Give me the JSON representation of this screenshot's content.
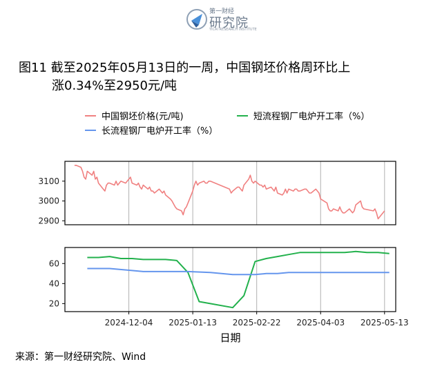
{
  "logo": {
    "top_text": "第一财经",
    "main_text": "研究院",
    "sub_text": "YICAI RESEARCH INSTITUTE"
  },
  "title": {
    "line1": "图11  截至2025年05月13日的一周，中国钢坯价格周环比上",
    "line2": "涨0.34%至2950元/吨"
  },
  "source": "来源：第一财经研究院、Wind",
  "colors": {
    "price": "#f08080",
    "short": "#22b14c",
    "long": "#6495ed"
  },
  "chart_data": [
    {
      "type": "line",
      "panel": "top",
      "series": [
        {
          "name": "中国钢坯价格(元/吨)",
          "x": [
            "2024-10-31",
            "2024-11-01",
            "2024-11-04",
            "2024-11-05",
            "2024-11-06",
            "2024-11-07",
            "2024-11-08",
            "2024-11-11",
            "2024-11-12",
            "2024-11-13",
            "2024-11-14",
            "2024-11-15",
            "2024-11-18",
            "2024-11-19",
            "2024-11-20",
            "2024-11-21",
            "2024-11-22",
            "2024-11-25",
            "2024-11-26",
            "2024-11-27",
            "2024-11-28",
            "2024-11-29",
            "2024-12-02",
            "2024-12-03",
            "2024-12-04",
            "2024-12-05",
            "2024-12-06",
            "2024-12-09",
            "2024-12-10",
            "2024-12-11",
            "2024-12-12",
            "2024-12-13",
            "2024-12-16",
            "2024-12-17",
            "2024-12-18",
            "2024-12-19",
            "2024-12-20",
            "2024-12-23",
            "2024-12-24",
            "2024-12-25",
            "2024-12-26",
            "2024-12-27",
            "2024-12-30",
            "2024-12-31",
            "2025-01-02",
            "2025-01-03",
            "2025-01-06",
            "2025-01-07",
            "2025-01-08",
            "2025-01-09",
            "2025-01-10",
            "2025-01-13",
            "2025-01-14",
            "2025-01-15",
            "2025-01-16",
            "2025-01-17",
            "2025-01-20",
            "2025-01-21",
            "2025-01-22",
            "2025-01-23",
            "2025-01-24",
            "2025-01-27",
            "2025-02-05",
            "2025-02-06",
            "2025-02-07",
            "2025-02-10",
            "2025-02-11",
            "2025-02-12",
            "2025-02-13",
            "2025-02-14",
            "2025-02-17",
            "2025-02-18",
            "2025-02-19",
            "2025-02-20",
            "2025-02-21",
            "2025-02-24",
            "2025-02-25",
            "2025-02-26",
            "2025-02-27",
            "2025-02-28",
            "2025-03-03",
            "2025-03-04",
            "2025-03-05",
            "2025-03-06",
            "2025-03-07",
            "2025-03-10",
            "2025-03-11",
            "2025-03-12",
            "2025-03-13",
            "2025-03-14",
            "2025-03-17",
            "2025-03-18",
            "2025-03-19",
            "2025-03-20",
            "2025-03-21",
            "2025-03-24",
            "2025-03-25",
            "2025-03-26",
            "2025-03-27",
            "2025-03-28",
            "2025-03-31",
            "2025-04-01",
            "2025-04-02",
            "2025-04-03",
            "2025-04-07",
            "2025-04-08",
            "2025-04-09",
            "2025-04-10",
            "2025-04-11",
            "2025-04-14",
            "2025-04-15",
            "2025-04-16",
            "2025-04-17",
            "2025-04-18",
            "2025-04-21",
            "2025-04-22",
            "2025-04-23",
            "2025-04-24",
            "2025-04-25",
            "2025-04-28",
            "2025-04-29",
            "2025-04-30",
            "2025-05-06",
            "2025-05-07",
            "2025-05-08",
            "2025-05-09",
            "2025-05-12",
            "2025-05-13"
          ],
          "values": [
            3180,
            3180,
            3170,
            3150,
            3120,
            3110,
            3150,
            3130,
            3150,
            3110,
            3120,
            3090,
            3060,
            3050,
            3080,
            3090,
            3090,
            3080,
            3100,
            3080,
            3090,
            3100,
            3090,
            3100,
            3110,
            3120,
            3090,
            3080,
            3090,
            3070,
            3060,
            3080,
            3060,
            3070,
            3050,
            3050,
            3040,
            3060,
            3050,
            3040,
            3050,
            3030,
            3010,
            3000,
            2970,
            2960,
            2950,
            2930,
            2960,
            2970,
            2990,
            3050,
            3080,
            3100,
            3080,
            3090,
            3100,
            3090,
            3090,
            3100,
            3100,
            3090,
            3060,
            3040,
            3050,
            3070,
            3070,
            3060,
            3050,
            3080,
            3110,
            3130,
            3100,
            3090,
            3100,
            3080,
            3080,
            3070,
            3080,
            3060,
            3070,
            3060,
            3050,
            3070,
            3040,
            3030,
            3040,
            3060,
            3040,
            3060,
            3050,
            3060,
            3060,
            3050,
            3050,
            3060,
            3060,
            3050,
            3040,
            3040,
            3060,
            3050,
            3040,
            3010,
            2990,
            2960,
            2950,
            2950,
            2960,
            2950,
            2970,
            2950,
            2940,
            2940,
            2960,
            2950,
            2940,
            2950,
            2980,
            3000,
            2970,
            2960,
            2950,
            2960,
            2940,
            2910,
            2940,
            2950
          ]
        }
      ],
      "yticks": [
        2900,
        3000,
        3100
      ],
      "ylim": [
        2880,
        3200
      ]
    },
    {
      "type": "line",
      "panel": "bottom",
      "series": [
        {
          "name": "短流程钢厂电炉开工率（%）",
          "x": [
            "2024-11-08",
            "2024-11-15",
            "2024-11-22",
            "2024-11-29",
            "2024-12-06",
            "2024-12-13",
            "2024-12-20",
            "2024-12-27",
            "2025-01-03",
            "2025-01-10",
            "2025-01-17",
            "2025-01-24",
            "2025-02-07",
            "2025-02-14",
            "2025-02-21",
            "2025-02-28",
            "2025-03-07",
            "2025-03-14",
            "2025-03-21",
            "2025-03-28",
            "2025-04-04",
            "2025-04-11",
            "2025-04-18",
            "2025-04-25",
            "2025-05-02",
            "2025-05-09",
            "2025-05-16"
          ],
          "values": [
            66,
            66,
            67,
            65,
            65,
            64,
            64,
            64,
            63,
            51,
            22,
            20,
            16,
            28,
            62,
            65,
            67,
            69,
            71,
            71,
            71,
            71,
            71,
            72,
            71,
            71,
            70
          ]
        },
        {
          "name": "长流程钢厂电炉开工率（%）",
          "x": [
            "2024-11-08",
            "2024-11-22",
            "2024-12-06",
            "2024-12-13",
            "2024-12-20",
            "2025-01-03",
            "2025-01-10",
            "2025-01-24",
            "2025-02-07",
            "2025-02-21",
            "2025-02-28",
            "2025-03-07",
            "2025-03-14",
            "2025-03-21",
            "2025-03-28",
            "2025-04-04",
            "2025-04-18",
            "2025-05-02",
            "2025-05-16"
          ],
          "values": [
            55,
            55,
            53,
            52,
            52,
            52,
            52,
            51,
            49,
            49,
            50,
            50,
            51,
            51,
            51,
            51,
            51,
            51,
            51
          ]
        }
      ],
      "yticks": [
        20,
        40,
        60
      ],
      "ylim": [
        12,
        76
      ]
    }
  ],
  "axes": {
    "xlabel": "日期",
    "xticks": [
      "2024-12-04",
      "2025-01-13",
      "2025-02-22",
      "2025-04-03",
      "2025-05-13"
    ],
    "xlim": [
      "2024-10-25",
      "2025-05-20"
    ]
  }
}
